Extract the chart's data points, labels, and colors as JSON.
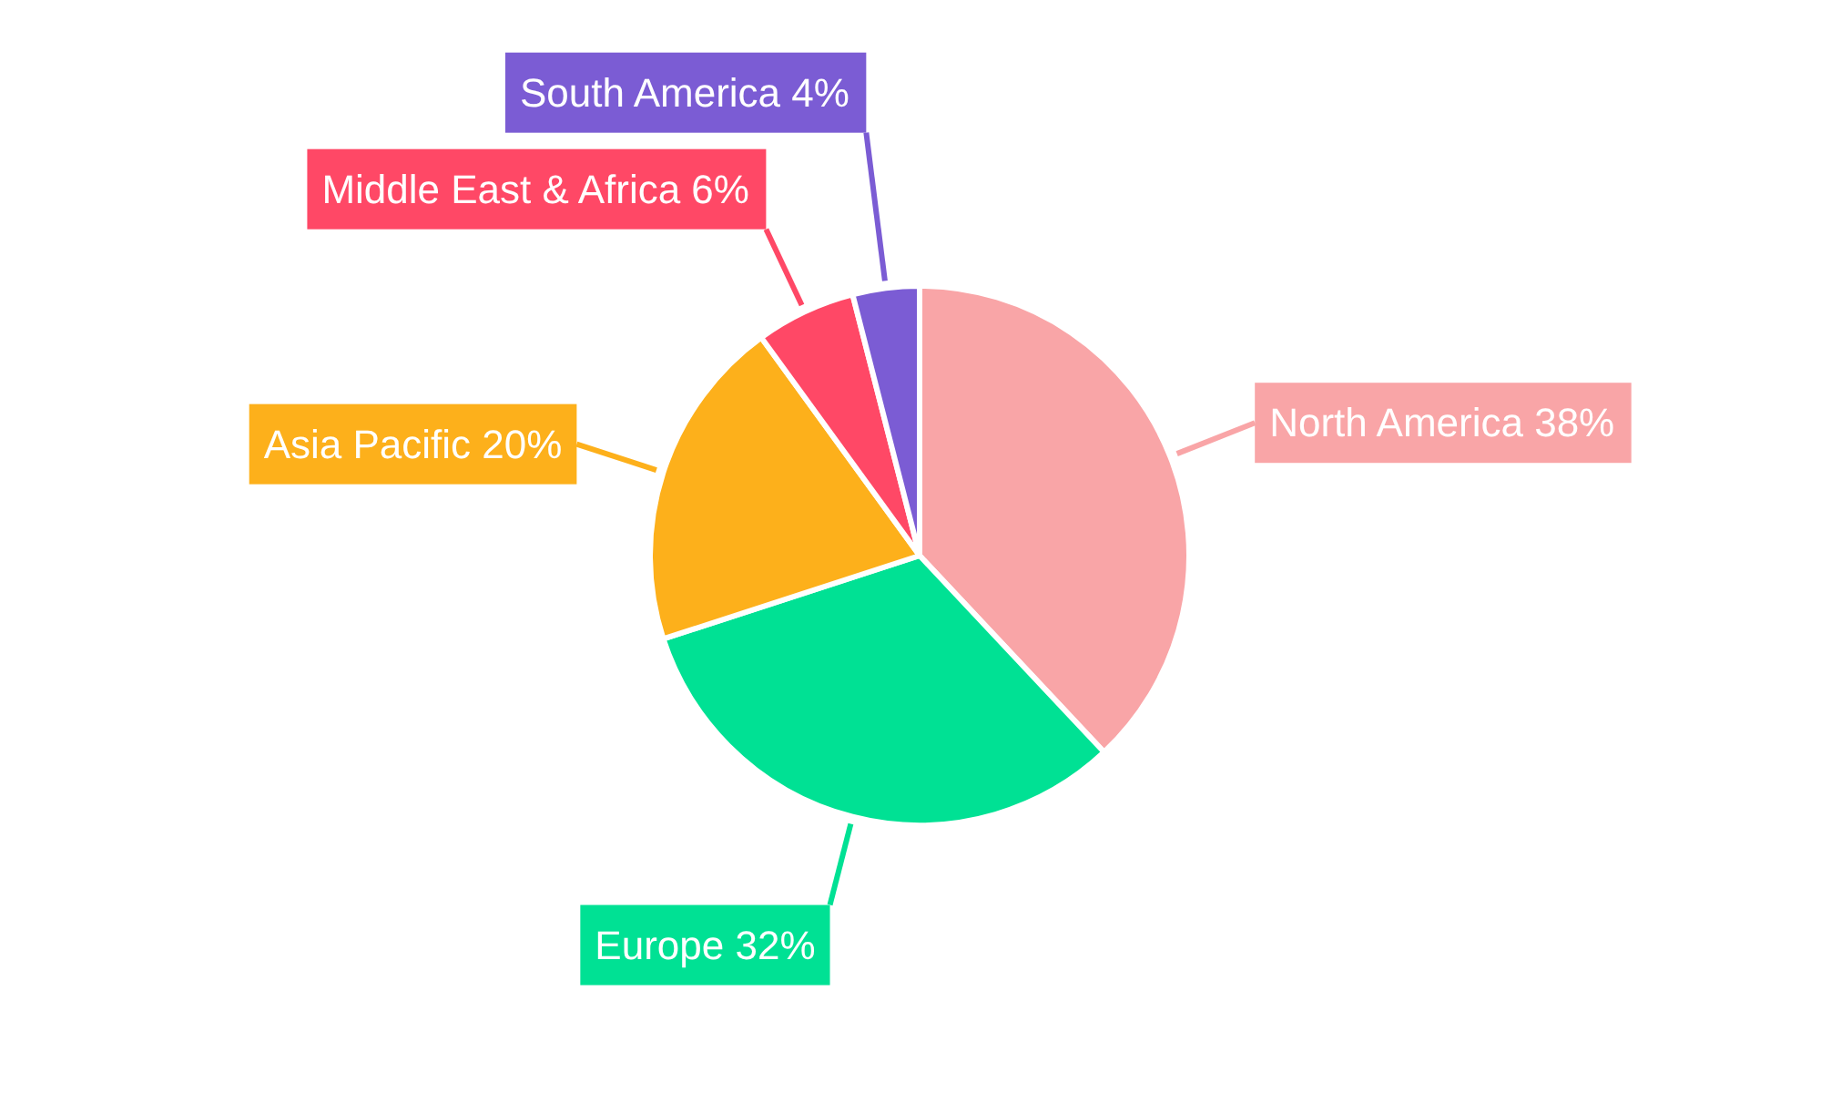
{
  "chart_data": {
    "type": "pie",
    "categories": [
      "North America",
      "Europe",
      "Asia Pacific",
      "Middle East & Africa",
      "South America"
    ],
    "values": [
      38,
      32,
      20,
      6,
      4
    ],
    "colors": [
      "#f9a5a7",
      "#00e194",
      "#fdb01b",
      "#ff4866",
      "#7b5cd4"
    ],
    "value_labels": [
      "38%",
      "32%",
      "20%",
      "6%",
      "4%"
    ],
    "legend": false
  }
}
